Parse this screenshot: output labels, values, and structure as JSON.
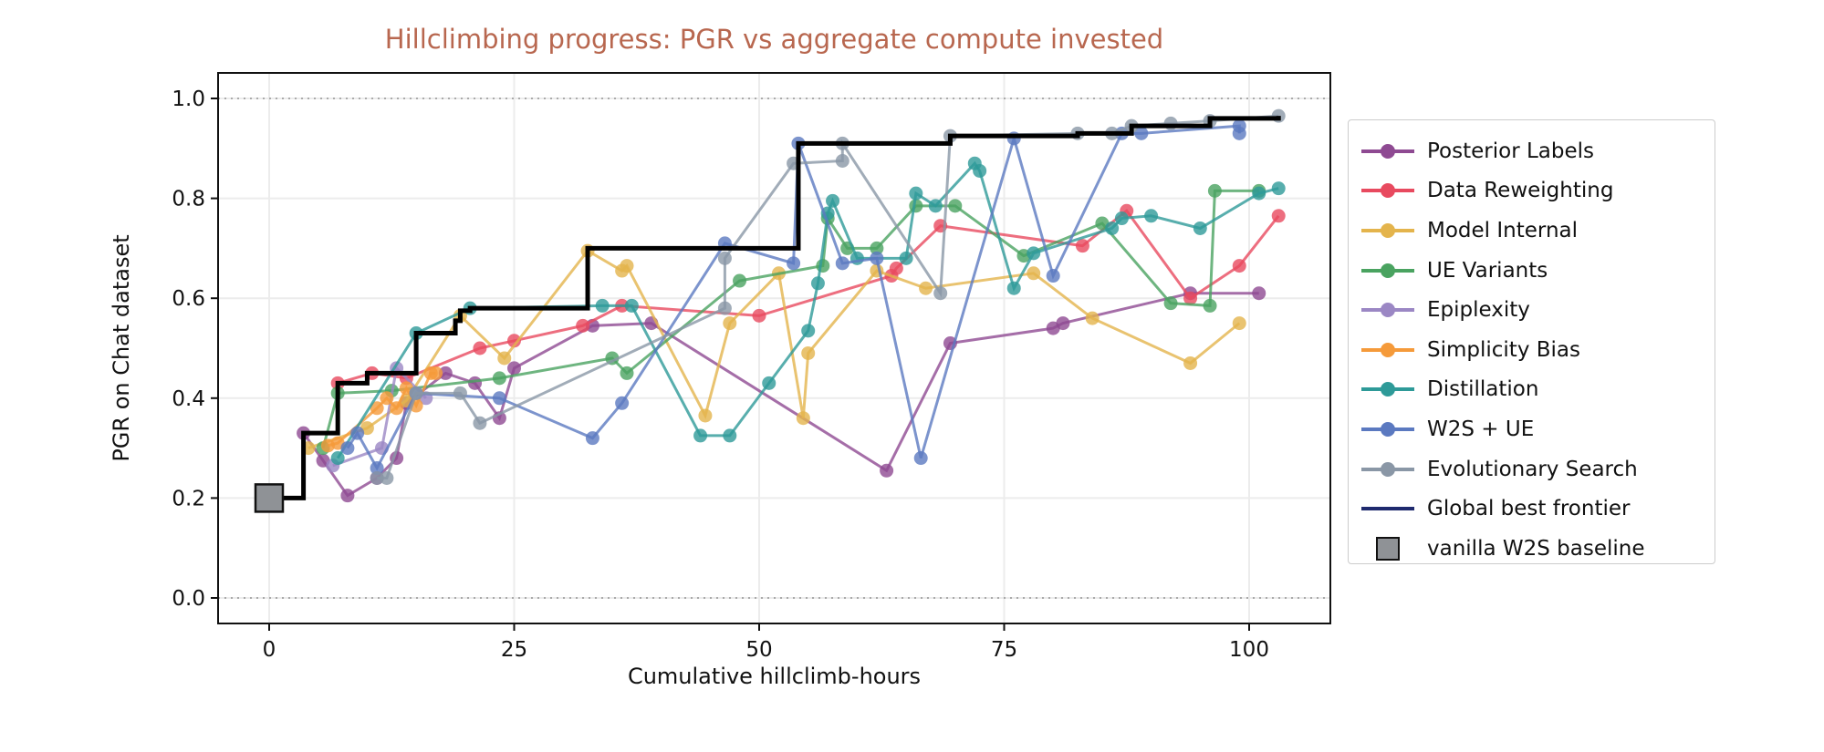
{
  "chart_data": {
    "type": "line",
    "title": "Hillclimbing progress: PGR vs aggregate compute invested",
    "xlabel": "Cumulative hillclimb-hours",
    "ylabel": "PGR on Chat  dataset",
    "xlim": [
      -5,
      108
    ],
    "ylim": [
      -0.05,
      1.07
    ],
    "xticks": [
      0,
      25,
      50,
      75,
      100
    ],
    "yticks": [
      0.0,
      0.2,
      0.4,
      0.6,
      0.8,
      1.0
    ],
    "ytick_labels": [
      "0.0",
      "0.2",
      "0.4",
      "0.6",
      "0.8",
      "1.0"
    ],
    "grid": true,
    "reference_lines": [
      0.0,
      1.0
    ],
    "legend_placement": "right outside",
    "series": [
      {
        "name": "Posterior Labels",
        "color": "#8e4a92",
        "points": [
          [
            3.5,
            0.33
          ],
          [
            5.5,
            0.275
          ],
          [
            8,
            0.205
          ],
          [
            11,
            0.24
          ],
          [
            13,
            0.28
          ],
          [
            14,
            0.39
          ],
          [
            18,
            0.45
          ],
          [
            21,
            0.43
          ],
          [
            23.5,
            0.36
          ],
          [
            25,
            0.46
          ],
          [
            33,
            0.545
          ],
          [
            39,
            0.55
          ],
          [
            63,
            0.255
          ],
          [
            69.5,
            0.51
          ],
          [
            80,
            0.54
          ],
          [
            81,
            0.55
          ],
          [
            94,
            0.61
          ],
          [
            101,
            0.61
          ]
        ]
      },
      {
        "name": "Data Reweighting",
        "color": "#e84a5f",
        "points": [
          [
            7,
            0.43
          ],
          [
            10.5,
            0.45
          ],
          [
            14,
            0.44
          ],
          [
            21.5,
            0.5
          ],
          [
            25,
            0.515
          ],
          [
            32,
            0.545
          ],
          [
            36,
            0.585
          ],
          [
            50,
            0.565
          ],
          [
            63.5,
            0.645
          ],
          [
            64,
            0.66
          ],
          [
            68.5,
            0.745
          ],
          [
            83,
            0.705
          ],
          [
            87.5,
            0.775
          ],
          [
            94,
            0.6
          ],
          [
            99,
            0.665
          ],
          [
            103,
            0.765
          ]
        ]
      },
      {
        "name": "Model Internal",
        "color": "#e4b44c",
        "points": [
          [
            4,
            0.3
          ],
          [
            10,
            0.34
          ],
          [
            14,
            0.395
          ],
          [
            19.5,
            0.565
          ],
          [
            24,
            0.48
          ],
          [
            32.5,
            0.695
          ],
          [
            36,
            0.655
          ],
          [
            36.5,
            0.665
          ],
          [
            44.5,
            0.365
          ],
          [
            47,
            0.55
          ],
          [
            52,
            0.65
          ],
          [
            54.5,
            0.36
          ],
          [
            55,
            0.49
          ],
          [
            62,
            0.655
          ],
          [
            67,
            0.62
          ],
          [
            78,
            0.65
          ],
          [
            84,
            0.56
          ],
          [
            94,
            0.47
          ],
          [
            99,
            0.55
          ]
        ]
      },
      {
        "name": "UE Variants",
        "color": "#4aa360",
        "points": [
          [
            5.5,
            0.3
          ],
          [
            7,
            0.41
          ],
          [
            12.5,
            0.415
          ],
          [
            23.5,
            0.44
          ],
          [
            35,
            0.48
          ],
          [
            36.5,
            0.45
          ],
          [
            48,
            0.635
          ],
          [
            56.5,
            0.665
          ],
          [
            57,
            0.76
          ],
          [
            59,
            0.7
          ],
          [
            62,
            0.7
          ],
          [
            66,
            0.785
          ],
          [
            70,
            0.785
          ],
          [
            77,
            0.685
          ],
          [
            85,
            0.75
          ],
          [
            92,
            0.59
          ],
          [
            96,
            0.585
          ],
          [
            96.5,
            0.815
          ],
          [
            101,
            0.815
          ]
        ]
      },
      {
        "name": "Epiplexity",
        "color": "#9b87c4",
        "points": [
          [
            6.5,
            0.265
          ],
          [
            11.5,
            0.3
          ],
          [
            13,
            0.46
          ],
          [
            16,
            0.4
          ]
        ]
      },
      {
        "name": "Simplicity Bias",
        "color": "#f59a3a",
        "points": [
          [
            6,
            0.305
          ],
          [
            7,
            0.31
          ],
          [
            11,
            0.38
          ],
          [
            12,
            0.4
          ],
          [
            13,
            0.38
          ],
          [
            14,
            0.42
          ],
          [
            15,
            0.385
          ],
          [
            16.5,
            0.45
          ],
          [
            17,
            0.45
          ]
        ]
      },
      {
        "name": "Distillation",
        "color": "#2e9a98",
        "points": [
          [
            7,
            0.28
          ],
          [
            15,
            0.53
          ],
          [
            20.5,
            0.58
          ],
          [
            34,
            0.585
          ],
          [
            37,
            0.585
          ],
          [
            44,
            0.325
          ],
          [
            47,
            0.325
          ],
          [
            51,
            0.43
          ],
          [
            55,
            0.535
          ],
          [
            56,
            0.63
          ],
          [
            57,
            0.77
          ],
          [
            57.5,
            0.795
          ],
          [
            60,
            0.68
          ],
          [
            65,
            0.68
          ],
          [
            66,
            0.81
          ],
          [
            68,
            0.785
          ],
          [
            72,
            0.87
          ],
          [
            72.5,
            0.855
          ],
          [
            76,
            0.62
          ],
          [
            78,
            0.69
          ],
          [
            86,
            0.74
          ],
          [
            87,
            0.76
          ],
          [
            90,
            0.765
          ],
          [
            95,
            0.74
          ],
          [
            101,
            0.81
          ],
          [
            103,
            0.82
          ]
        ]
      },
      {
        "name": "W2S + UE",
        "color": "#5b79c0",
        "points": [
          [
            8,
            0.3
          ],
          [
            9,
            0.33
          ],
          [
            11,
            0.26
          ],
          [
            15,
            0.41
          ],
          [
            23.5,
            0.4
          ],
          [
            33,
            0.32
          ],
          [
            36,
            0.39
          ],
          [
            46.5,
            0.71
          ],
          [
            53.5,
            0.67
          ],
          [
            54,
            0.91
          ],
          [
            58.5,
            0.67
          ],
          [
            62,
            0.68
          ],
          [
            66.5,
            0.28
          ],
          [
            76,
            0.92
          ],
          [
            80,
            0.645
          ],
          [
            87,
            0.93
          ],
          [
            89,
            0.93
          ],
          [
            99,
            0.945
          ],
          [
            99,
            0.93
          ]
        ]
      },
      {
        "name": "Evolutionary Search",
        "color": "#8a97a6",
        "points": [
          [
            11,
            0.24
          ],
          [
            12,
            0.24
          ],
          [
            15,
            0.41
          ],
          [
            19.5,
            0.41
          ],
          [
            21.5,
            0.35
          ],
          [
            46.5,
            0.58
          ],
          [
            46.5,
            0.68
          ],
          [
            53.5,
            0.87
          ],
          [
            58.5,
            0.875
          ],
          [
            58.5,
            0.91
          ],
          [
            68.5,
            0.61
          ],
          [
            69.5,
            0.925
          ],
          [
            82.5,
            0.93
          ],
          [
            86,
            0.93
          ],
          [
            88,
            0.945
          ],
          [
            92,
            0.95
          ],
          [
            96,
            0.955
          ],
          [
            103,
            0.965
          ]
        ]
      }
    ],
    "frontier": {
      "name": "Global best frontier",
      "legend_color": "#1f2a6e",
      "color": "#000000",
      "steps": [
        [
          0,
          0.2
        ],
        [
          3.5,
          0.33
        ],
        [
          7,
          0.43
        ],
        [
          10,
          0.45
        ],
        [
          15,
          0.53
        ],
        [
          19,
          0.555
        ],
        [
          19.5,
          0.575
        ],
        [
          20.5,
          0.58
        ],
        [
          32.5,
          0.7
        ],
        [
          54,
          0.91
        ],
        [
          69.5,
          0.925
        ],
        [
          82.5,
          0.93
        ],
        [
          88,
          0.945
        ],
        [
          96,
          0.96
        ],
        [
          103,
          0.965
        ]
      ]
    },
    "baseline": {
      "name": "vanilla W2S baseline",
      "x": 0,
      "y": 0.2,
      "color": "#8f9296"
    }
  }
}
